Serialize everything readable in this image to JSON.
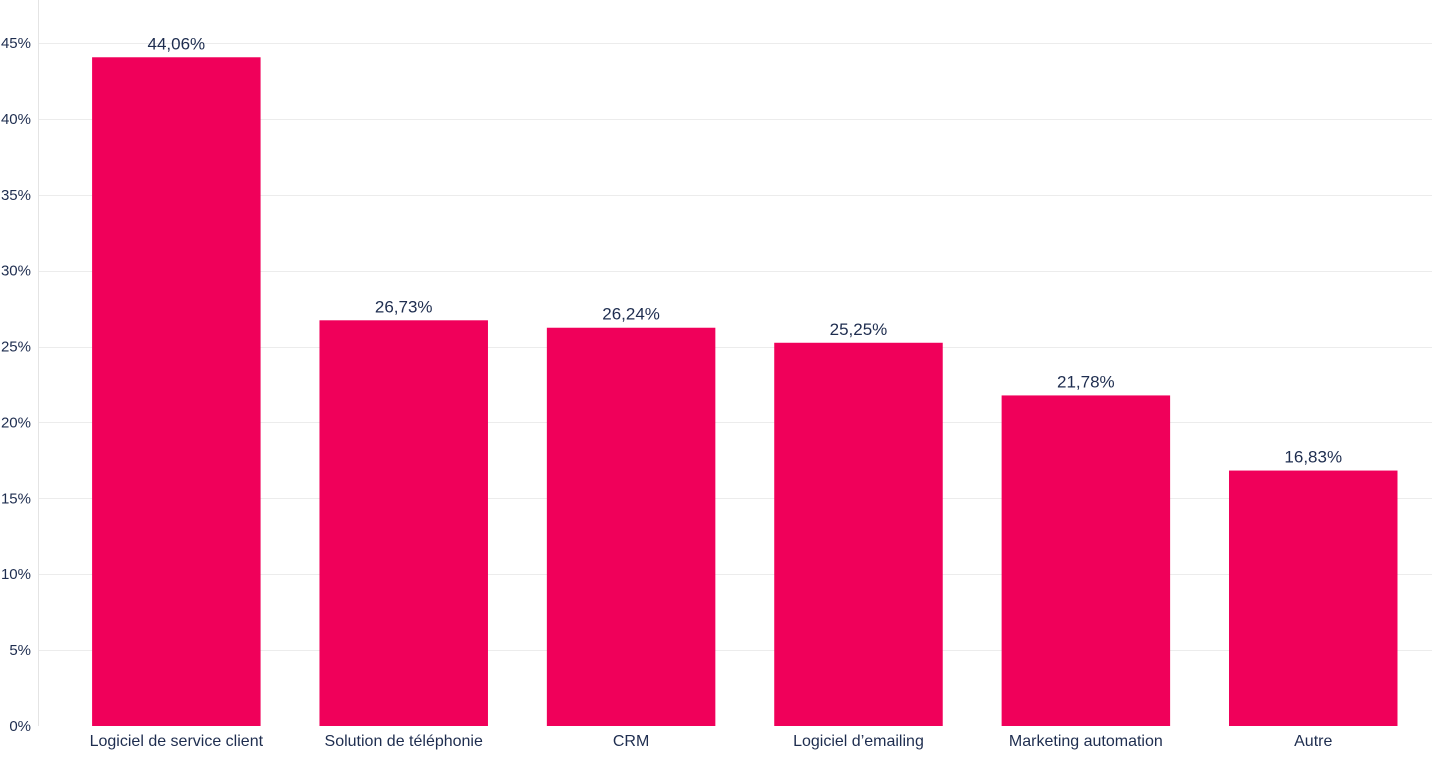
{
  "chart_data": {
    "type": "bar",
    "categories": [
      "Logiciel de service client",
      "Solution de téléphonie",
      "CRM",
      "Logiciel d’emailing",
      "Marketing automation",
      "Autre"
    ],
    "values": [
      44.06,
      26.73,
      26.24,
      25.25,
      21.78,
      16.83
    ],
    "data_labels": [
      "44,06%",
      "26,73%",
      "26,24%",
      "25,25%",
      "21,78%",
      "16,83%"
    ],
    "y_ticks": [
      0,
      5,
      10,
      15,
      20,
      25,
      30,
      35,
      40,
      45
    ],
    "y_tick_labels": [
      "0%",
      "5%",
      "10%",
      "15%",
      "20%",
      "25%",
      "30%",
      "35%",
      "40%",
      "45%"
    ],
    "ylim": [
      0,
      45
    ],
    "grid": true,
    "bar_color": "#f0005a",
    "text_color": "#1e2d4f"
  }
}
